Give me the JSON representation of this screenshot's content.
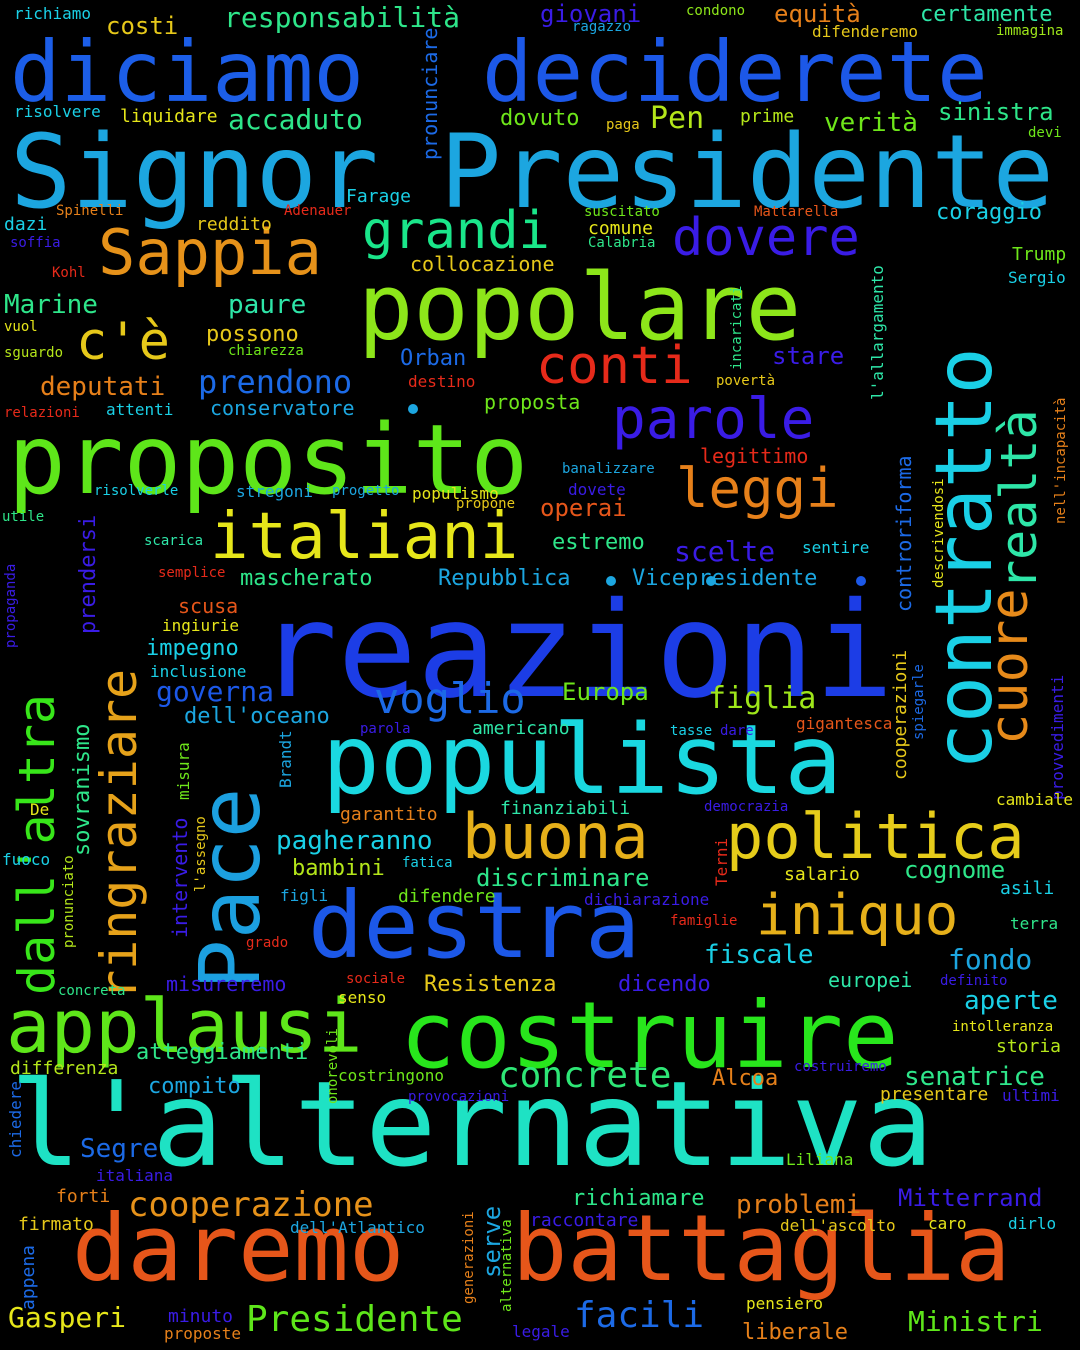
{
  "cloud": {
    "background": "#000000",
    "words": [
      {
        "text": "reazioni",
        "color": "#1c3de6"
      },
      {
        "text": "l'alternativa",
        "color": "#1ee2c4"
      },
      {
        "text": "Signor Presidente",
        "color": "#1ca6e0"
      },
      {
        "text": "diciamo",
        "color": "#1c5ee8"
      },
      {
        "text": "deciderete",
        "color": "#1c58e8"
      },
      {
        "text": "popolare",
        "color": "#8de61a"
      },
      {
        "text": "proposito",
        "color": "#5ee61a"
      },
      {
        "text": "populista",
        "color": "#1ad8e0"
      },
      {
        "text": "costruire",
        "color": "#28e61c"
      },
      {
        "text": "daremo",
        "color": "#e6561a"
      },
      {
        "text": "battaglia",
        "color": "#e6561a"
      },
      {
        "text": "destra",
        "color": "#1c58e8"
      },
      {
        "text": "Pace",
        "color": "#1ca0e0"
      },
      {
        "text": "contratto",
        "color": "#1ad0e6"
      },
      {
        "text": "applausi",
        "color": "#5ee61a"
      },
      {
        "text": "politica",
        "color": "#e6cc1a"
      },
      {
        "text": "buona",
        "color": "#e6b01a"
      },
      {
        "text": "Sappia",
        "color": "#e6921a"
      },
      {
        "text": "italiani",
        "color": "#e6e61a"
      },
      {
        "text": "dall'altra",
        "color": "#38e61a"
      },
      {
        "text": "ringraziare",
        "color": "#e6a21a"
      },
      {
        "text": "iniquo",
        "color": "#e6b01a"
      },
      {
        "text": "cuore",
        "color": "#e68a1a"
      },
      {
        "text": "realtà",
        "color": "#2ee6a8"
      },
      {
        "text": "parole",
        "color": "#3a1ce6"
      },
      {
        "text": "grandi",
        "color": "#1ae68a"
      },
      {
        "text": "dovere",
        "color": "#3a1ce6"
      },
      {
        "text": "leggi",
        "color": "#e6801a"
      },
      {
        "text": "conti",
        "color": "#e62a1a"
      },
      {
        "text": "c'è",
        "color": "#e6c81a"
      },
      {
        "text": "voglio",
        "color": "#1c6ae6"
      },
      {
        "text": "concrete",
        "color": "#2ee676"
      },
      {
        "text": "cooperazione",
        "color": "#e6921a"
      },
      {
        "text": "facili",
        "color": "#1c6ae6"
      },
      {
        "text": "Presidente",
        "color": "#5ee61a"
      },
      {
        "text": "figlia",
        "color": "#9ee61a"
      },
      {
        "text": "prendono",
        "color": "#1c6ae6"
      },
      {
        "text": "operai",
        "color": "#e6561a"
      },
      {
        "text": "scelte",
        "color": "#3a1ce6"
      },
      {
        "text": "Europa",
        "color": "#6ee61a"
      },
      {
        "text": "governa",
        "color": "#1c58e8"
      },
      {
        "text": "Gasperi",
        "color": "#e6e61a"
      },
      {
        "text": "Ministri",
        "color": "#5ee61a"
      },
      {
        "text": "problemi",
        "color": "#e6801a"
      },
      {
        "text": "Mitterrand",
        "color": "#3a1ce6"
      },
      {
        "text": "Segre",
        "color": "#1c6ae6"
      },
      {
        "text": "responsabilità",
        "color": "#2ee68a"
      },
      {
        "text": "costi",
        "color": "#e6c81a"
      },
      {
        "text": "giovani",
        "color": "#3a1ce6"
      },
      {
        "text": "equità",
        "color": "#e6801a"
      },
      {
        "text": "certamente",
        "color": "#2ee6a8"
      },
      {
        "text": "richiamo",
        "color": "#1ad0e6"
      },
      {
        "text": "ragazzo",
        "color": "#1ca6e0"
      },
      {
        "text": "condono",
        "color": "#8de61a"
      },
      {
        "text": "difenderemo",
        "color": "#e6c81a"
      },
      {
        "text": "immagina",
        "color": "#9ee61a"
      },
      {
        "text": "accaduto",
        "color": "#2ee68a"
      },
      {
        "text": "risolvere",
        "color": "#1ad0e6"
      },
      {
        "text": "liquidare",
        "color": "#e6e61a"
      },
      {
        "text": "dovuto",
        "color": "#6ee61a"
      },
      {
        "text": "paga",
        "color": "#e6c81a"
      },
      {
        "text": "Pen",
        "color": "#b4e61a"
      },
      {
        "text": "prime",
        "color": "#b4e61a"
      },
      {
        "text": "verità",
        "color": "#6ee61a"
      },
      {
        "text": "sinistra",
        "color": "#2ee68a"
      },
      {
        "text": "devi",
        "color": "#6ee61a"
      },
      {
        "text": "pronunciare",
        "color": "#1c6ae6"
      },
      {
        "text": "Farage",
        "color": "#1ad0e6"
      },
      {
        "text": "Spinelli",
        "color": "#e6801a"
      },
      {
        "text": "Adenauer",
        "color": "#e62a1a"
      },
      {
        "text": "suscitato",
        "color": "#6ee61a"
      },
      {
        "text": "Mattarella",
        "color": "#e6561a"
      },
      {
        "text": "coraggio",
        "color": "#1ad0e6"
      },
      {
        "text": "dazi",
        "color": "#1ad0e6"
      },
      {
        "text": "reddito",
        "color": "#e6c81a"
      },
      {
        "text": "comune",
        "color": "#e6e61a"
      },
      {
        "text": "soffia",
        "color": "#3a1ce6"
      },
      {
        "text": "Calabria",
        "color": "#2ee68a"
      },
      {
        "text": "Trump",
        "color": "#6ee61a"
      },
      {
        "text": "Kohl",
        "color": "#e62a1a"
      },
      {
        "text": "collocazione",
        "color": "#e6c81a"
      },
      {
        "text": "Sergio",
        "color": "#1ad0e6"
      },
      {
        "text": "Marine",
        "color": "#2ee68a"
      },
      {
        "text": "paure",
        "color": "#2ee6a8"
      },
      {
        "text": "vuol",
        "color": "#e6e61a"
      },
      {
        "text": "possono",
        "color": "#e6c81a"
      },
      {
        "text": "sguardo",
        "color": "#b4e61a"
      },
      {
        "text": "chiarezza",
        "color": "#6ee61a"
      },
      {
        "text": "incaricati",
        "color": "#2ee68a"
      },
      {
        "text": "l'allargamento",
        "color": "#2ee6a8"
      },
      {
        "text": "Orban",
        "color": "#1c6ae6"
      },
      {
        "text": "stare",
        "color": "#3a1ce6"
      },
      {
        "text": "deputati",
        "color": "#e6801a"
      },
      {
        "text": "destino",
        "color": "#e62a1a"
      },
      {
        "text": "povertà",
        "color": "#e6c81a"
      },
      {
        "text": "relazioni",
        "color": "#e62a1a"
      },
      {
        "text": "attenti",
        "color": "#1ad0e6"
      },
      {
        "text": "conservatore",
        "color": "#1ca6e0"
      },
      {
        "text": "proposta",
        "color": "#6ee61a"
      },
      {
        "text": "controriforma",
        "color": "#1c6ae6"
      },
      {
        "text": "nell'incapacità",
        "color": "#e6801a"
      },
      {
        "text": "legittimo",
        "color": "#e62a1a"
      },
      {
        "text": "banalizzare",
        "color": "#1ca6e0"
      },
      {
        "text": "risolverle",
        "color": "#1ad0e6"
      },
      {
        "text": "stregoni",
        "color": "#1ca6e0"
      },
      {
        "text": "progetto",
        "color": "#1ca6e0"
      },
      {
        "text": "populismo",
        "color": "#e6e61a"
      },
      {
        "text": "dovete",
        "color": "#3a1ce6"
      },
      {
        "text": "propone",
        "color": "#e6c81a"
      },
      {
        "text": "descrivendosi",
        "color": "#e6e61a"
      },
      {
        "text": "utile",
        "color": "#2ee68a"
      },
      {
        "text": "prendersi",
        "color": "#3a1ce6"
      },
      {
        "text": "scarica",
        "color": "#2ee6a8"
      },
      {
        "text": "estremo",
        "color": "#2ee68a"
      },
      {
        "text": "sentire",
        "color": "#1ad0e6"
      },
      {
        "text": "propaganda",
        "color": "#3a1ce6"
      },
      {
        "text": "semplice",
        "color": "#e62a1a"
      },
      {
        "text": "mascherato",
        "color": "#2ee68a"
      },
      {
        "text": "Repubblica",
        "color": "#1ca6e0"
      },
      {
        "text": "Vicepresidente",
        "color": "#1ca6e0"
      },
      {
        "text": "scusa",
        "color": "#e6561a"
      },
      {
        "text": "ingiurie",
        "color": "#e6e61a"
      },
      {
        "text": "impegno",
        "color": "#1ad0e6"
      },
      {
        "text": "provvedimenti",
        "color": "#3a1ce6"
      },
      {
        "text": "cooperazioni",
        "color": "#e6c81a"
      },
      {
        "text": "spiegarle",
        "color": "#1c6ae6"
      },
      {
        "text": "inclusione",
        "color": "#1ad0e6"
      },
      {
        "text": "dell'oceano",
        "color": "#1ca6e0"
      },
      {
        "text": "parola",
        "color": "#3a1ce6"
      },
      {
        "text": "americano",
        "color": "#2ee6a8"
      },
      {
        "text": "tasse",
        "color": "#1ad0e6"
      },
      {
        "text": "dare",
        "color": "#3a1ce6"
      },
      {
        "text": "gigantesca",
        "color": "#e6561a"
      },
      {
        "text": "sovranismo",
        "color": "#2ee68a"
      },
      {
        "text": "misura",
        "color": "#6ee61a"
      },
      {
        "text": "Brandt",
        "color": "#1ca6e0"
      },
      {
        "text": "garantito",
        "color": "#e6801a"
      },
      {
        "text": "finanziabili",
        "color": "#2ee6a8"
      },
      {
        "text": "democrazia",
        "color": "#3a1ce6"
      },
      {
        "text": "cambiale",
        "color": "#e6e61a"
      },
      {
        "text": "De",
        "color": "#e6e61a"
      },
      {
        "text": "l'assegno",
        "color": "#e6c81a"
      },
      {
        "text": "intervento",
        "color": "#3a1ce6"
      },
      {
        "text": "pagheranno",
        "color": "#1ad0e6"
      },
      {
        "text": "fuoco",
        "color": "#1ad0e6"
      },
      {
        "text": "pronunciato",
        "color": "#b4e61a"
      },
      {
        "text": "bambini",
        "color": "#b4e61a"
      },
      {
        "text": "fatica",
        "color": "#1ad0e6"
      },
      {
        "text": "Terni",
        "color": "#e62a1a"
      },
      {
        "text": "cognome",
        "color": "#2ee68a"
      },
      {
        "text": "discriminare",
        "color": "#2ee68a"
      },
      {
        "text": "salario",
        "color": "#e6e61a"
      },
      {
        "text": "asili",
        "color": "#1ad0e6"
      },
      {
        "text": "figli",
        "color": "#1ca6e0"
      },
      {
        "text": "difendere",
        "color": "#6ee61a"
      },
      {
        "text": "dichiarazione",
        "color": "#3a1ce6"
      },
      {
        "text": "famiglie",
        "color": "#e62a1a"
      },
      {
        "text": "terra",
        "color": "#2ee68a"
      },
      {
        "text": "grado",
        "color": "#e62a1a"
      },
      {
        "text": "fiscale",
        "color": "#1ad0e6"
      },
      {
        "text": "fondo",
        "color": "#1ca6e0"
      },
      {
        "text": "misureremo",
        "color": "#3a1ce6"
      },
      {
        "text": "sociale",
        "color": "#e62a1a"
      },
      {
        "text": "Resistenza",
        "color": "#e6c81a"
      },
      {
        "text": "dicendo",
        "color": "#3a1ce6"
      },
      {
        "text": "europei",
        "color": "#2ee6a8"
      },
      {
        "text": "definito",
        "color": "#3a1ce6"
      },
      {
        "text": "concreta",
        "color": "#2ee68a"
      },
      {
        "text": "senso",
        "color": "#e6e61a"
      },
      {
        "text": "aperte",
        "color": "#1ad0e6"
      },
      {
        "text": "intolleranza",
        "color": "#e6e61a"
      },
      {
        "text": "atteggiamenti",
        "color": "#2ee68a"
      },
      {
        "text": "storia",
        "color": "#b4e61a"
      },
      {
        "text": "differenza",
        "color": "#b4e61a"
      },
      {
        "text": "onorevoli",
        "color": "#6ee61a"
      },
      {
        "text": "costringono",
        "color": "#6ee61a"
      },
      {
        "text": "costruiremo",
        "color": "#3a1ce6"
      },
      {
        "text": "senatrice",
        "color": "#2ee68a"
      },
      {
        "text": "compito",
        "color": "#1ca6e0"
      },
      {
        "text": "Alcoa",
        "color": "#e6801a"
      },
      {
        "text": "presentare",
        "color": "#e6c81a"
      },
      {
        "text": "ultimi",
        "color": "#3a1ce6"
      },
      {
        "text": "chiedere",
        "color": "#1c6ae6"
      },
      {
        "text": "provocazioni",
        "color": "#3a1ce6"
      },
      {
        "text": "Liliana",
        "color": "#6ee61a"
      },
      {
        "text": "italiana",
        "color": "#3a1ce6"
      },
      {
        "text": "forti",
        "color": "#e6801a"
      },
      {
        "text": "richiamare",
        "color": "#2ee68a"
      },
      {
        "text": "firmato",
        "color": "#e6c81a"
      },
      {
        "text": "dell'Atlantico",
        "color": "#1ca6e0"
      },
      {
        "text": "serve",
        "color": "#1ca6e0"
      },
      {
        "text": "raccontare",
        "color": "#3a1ce6"
      },
      {
        "text": "dell'ascolto",
        "color": "#e6c81a"
      },
      {
        "text": "caro",
        "color": "#e6e61a"
      },
      {
        "text": "dirlo",
        "color": "#1ad0e6"
      },
      {
        "text": "generazioni",
        "color": "#e6801a"
      },
      {
        "text": "alternativa",
        "color": "#6ee61a"
      },
      {
        "text": "appena",
        "color": "#1c6ae6"
      },
      {
        "text": "minuto",
        "color": "#3a1ce6"
      },
      {
        "text": "proposte",
        "color": "#e6801a"
      },
      {
        "text": "legale",
        "color": "#3a1ce6"
      },
      {
        "text": "pensiero",
        "color": "#e6e61a"
      },
      {
        "text": "liberale",
        "color": "#e6801a"
      }
    ]
  }
}
